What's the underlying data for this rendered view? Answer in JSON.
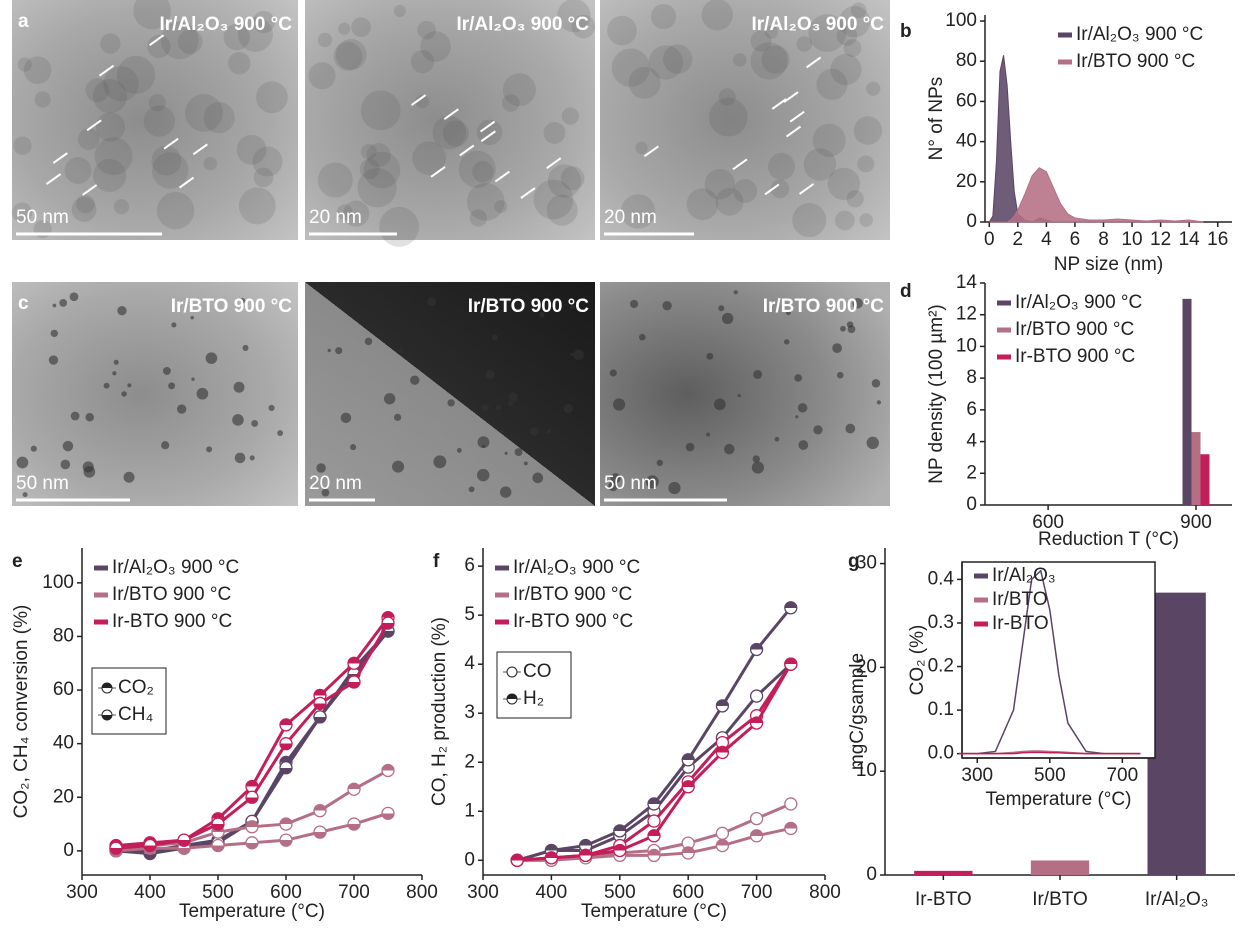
{
  "figure_panels": [
    {
      "letter": "a",
      "images": [
        {
          "label": "Ir/Al₂O₃ 900 °C",
          "scale_bar": "50 nm"
        },
        {
          "label": "Ir/Al₂O₃ 900 °C",
          "scale_bar": "20 nm"
        },
        {
          "label": "Ir/Al₂O₃ 900 °C",
          "scale_bar": "20 nm"
        }
      ]
    },
    {
      "letter": "c",
      "images": [
        {
          "label": "Ir/BTO 900 °C",
          "scale_bar": "50 nm"
        },
        {
          "label": "Ir/BTO 900 °C",
          "scale_bar": "20 nm"
        },
        {
          "label": "Ir/BTO 900 °C",
          "scale_bar": "50 nm"
        }
      ]
    }
  ],
  "chart_data": [
    {
      "type": "area",
      "panel": "b",
      "x_label": "NP size (nm)",
      "y_label": "N° of NPs",
      "x": [
        0,
        0.25,
        0.5,
        0.75,
        1,
        1.25,
        1.5,
        1.75,
        2,
        2.5,
        3,
        3.5,
        4,
        4.5,
        5,
        5.5,
        6,
        7,
        8,
        9,
        10,
        11,
        12,
        13,
        14,
        15
      ],
      "series": [
        {
          "name": "Ir/Al₂O₃ 900 °C",
          "color": "#5a4565",
          "values": [
            0,
            3,
            30,
            75,
            83,
            68,
            40,
            15,
            4,
            1,
            0,
            2,
            1,
            0,
            0,
            0,
            0,
            0,
            0,
            0,
            0,
            0,
            0,
            0,
            0,
            0
          ]
        },
        {
          "name": "Ir/BTO 900 °C",
          "color": "#b56f85",
          "values": [
            0,
            0,
            0,
            0,
            0,
            0,
            1,
            3,
            6,
            14,
            23,
            27,
            25,
            17,
            9,
            4,
            2,
            1,
            1,
            1.5,
            1,
            0.5,
            1,
            0.5,
            1,
            0
          ]
        }
      ],
      "xlim": [
        -0.3,
        17
      ],
      "xticks": [
        0,
        2,
        4,
        6,
        8,
        10,
        12,
        14,
        16
      ],
      "ylim": [
        0,
        103
      ],
      "yticks": [
        0,
        20,
        40,
        60,
        80,
        100
      ],
      "legend": "upper right"
    },
    {
      "type": "bar",
      "panel": "d",
      "x_label": "Reduction T (°C)",
      "y_label": "NP density (100 µm²)",
      "x": [
        900
      ],
      "series": [
        {
          "name": "Ir/Al₂O₃ 900 °C",
          "color": "#5a4565",
          "values": [
            13
          ]
        },
        {
          "name": "Ir/BTO 900 °C",
          "color": "#b56f85",
          "values": [
            4.6
          ]
        },
        {
          "name": "Ir-BTO 900 °C",
          "color": "#c41e5a",
          "values": [
            3.2
          ]
        }
      ],
      "xlim": [
        472,
        973
      ],
      "xticks": [
        600,
        900
      ],
      "ylim": [
        0,
        14
      ],
      "yticks": [
        0,
        2,
        4,
        6,
        8,
        10,
        12,
        14
      ],
      "legend": "upper left"
    },
    {
      "type": "line",
      "panel": "e",
      "x_label": "Temperature (°C)",
      "y_label": "CO₂, CH₄ conversion (%)",
      "x": [
        350,
        400,
        450,
        500,
        550,
        600,
        650,
        700,
        750
      ],
      "subseries": [
        "CO₂",
        "CH₄"
      ],
      "marker_fill": [
        "top",
        "bottom"
      ],
      "series": [
        {
          "name": "Ir/Al₂O₃ 900 °C",
          "color": "#5a4565",
          "values": [
            [
              1,
              0,
              2,
              4,
              11,
              33,
              50,
              68,
              82
            ],
            [
              0,
              -1,
              1,
              3,
              11,
              31,
              50,
              66,
              82
            ]
          ]
        },
        {
          "name": "Ir/BTO 900 °C",
          "color": "#b56f85",
          "values": [
            [
              1,
              2,
              3,
              7,
              9,
              10,
              15,
              23,
              30
            ],
            [
              0,
              1,
              1,
              2,
              3,
              4,
              7,
              10,
              14
            ]
          ]
        },
        {
          "name": "Ir-BTO 900 °C",
          "color": "#c41e5a",
          "values": [
            [
              2,
              3,
              4,
              12,
              24,
              47,
              58,
              70,
              87
            ],
            [
              1,
              2,
              4,
              10,
              20,
              40,
              55,
              63,
              85
            ]
          ]
        }
      ],
      "xlim": [
        300,
        800
      ],
      "xticks": [
        300,
        400,
        500,
        600,
        700,
        800
      ],
      "ylim": [
        -9,
        113
      ],
      "yticks": [
        0,
        20,
        40,
        60,
        80,
        100
      ],
      "legend": "upper left"
    },
    {
      "type": "line",
      "panel": "f",
      "x_label": "Temperature (°C)",
      "y_label": "CO, H₂ production (%)",
      "x": [
        350,
        400,
        450,
        500,
        550,
        600,
        650,
        700,
        750
      ],
      "subseries": [
        "CO",
        "H₂"
      ],
      "marker_fill": [
        "none",
        "top"
      ],
      "series": [
        {
          "name": "Ir/Al₂O₃ 900 °C",
          "color": "#5a4565",
          "values": [
            [
              0,
              0.2,
              0.2,
              0.5,
              1.0,
              1.9,
              2.5,
              3.35,
              4.0
            ],
            [
              0,
              0.2,
              0.3,
              0.6,
              1.15,
              2.05,
              3.15,
              4.3,
              5.15
            ]
          ]
        },
        {
          "name": "Ir/BTO 900 °C",
          "color": "#b56f85",
          "values": [
            [
              0,
              0,
              0.1,
              0.15,
              0.2,
              0.35,
              0.55,
              0.85,
              1.15
            ],
            [
              0,
              0,
              0.05,
              0.1,
              0.1,
              0.15,
              0.3,
              0.5,
              0.65
            ]
          ]
        },
        {
          "name": "Ir-BTO 900 °C",
          "color": "#c41e5a",
          "values": [
            [
              0,
              0.05,
              0.1,
              0.3,
              0.8,
              1.6,
              2.4,
              2.95,
              4.0
            ],
            [
              0,
              0.05,
              0.1,
              0.2,
              0.5,
              1.5,
              2.2,
              2.8,
              4.0
            ]
          ]
        }
      ],
      "xlim": [
        300,
        800
      ],
      "xticks": [
        300,
        400,
        500,
        600,
        700,
        800
      ],
      "ylim": [
        -0.3,
        6.37
      ],
      "yticks": [
        0,
        1,
        2,
        3,
        4,
        5,
        6
      ],
      "legend": "upper left"
    },
    {
      "type": "bar",
      "panel": "g",
      "y_label": "mgC/gsample",
      "categories": [
        "Ir-BTO",
        "Ir/BTO",
        "Ir/Al₂O₃"
      ],
      "values": [
        0.4,
        1.4,
        27.2
      ],
      "colors": [
        "#c41e5a",
        "#b56f85",
        "#5a4565"
      ],
      "ylim": [
        0,
        31.5
      ],
      "yticks": [
        0,
        10,
        20,
        30
      ]
    },
    {
      "type": "line",
      "x_label": "Temperature (°C)",
      "y_label": "CO₂ (%)",
      "x": [
        250,
        300,
        350,
        400,
        425,
        450,
        475,
        500,
        525,
        550,
        600,
        650,
        700,
        750
      ],
      "series": [
        {
          "name": "Ir/Al₂O₃",
          "color": "#5a4565",
          "values": [
            0,
            0,
            0.005,
            0.1,
            0.25,
            0.4,
            0.42,
            0.33,
            0.18,
            0.07,
            0.005,
            0,
            0,
            0
          ]
        },
        {
          "name": "Ir/BTO",
          "color": "#b56f85",
          "values": [
            0,
            0,
            0,
            0.003,
            0.005,
            0.006,
            0.006,
            0.005,
            0.004,
            0.003,
            0,
            0,
            0,
            0
          ]
        },
        {
          "name": "Ir-BTO",
          "color": "#c41e5a",
          "values": [
            0,
            0,
            0,
            0,
            0.002,
            0.003,
            0.003,
            0.002,
            0.002,
            0.001,
            0,
            0,
            0,
            0
          ]
        }
      ],
      "xlim": [
        258,
        790
      ],
      "xticks": [
        300,
        500,
        700
      ],
      "ylim": [
        -0.01,
        0.44
      ],
      "yticks": [
        {
          "value": 0,
          "label": "0.0"
        },
        0.1,
        0.2,
        0.3,
        0.4
      ],
      "legend": "upper left"
    }
  ]
}
